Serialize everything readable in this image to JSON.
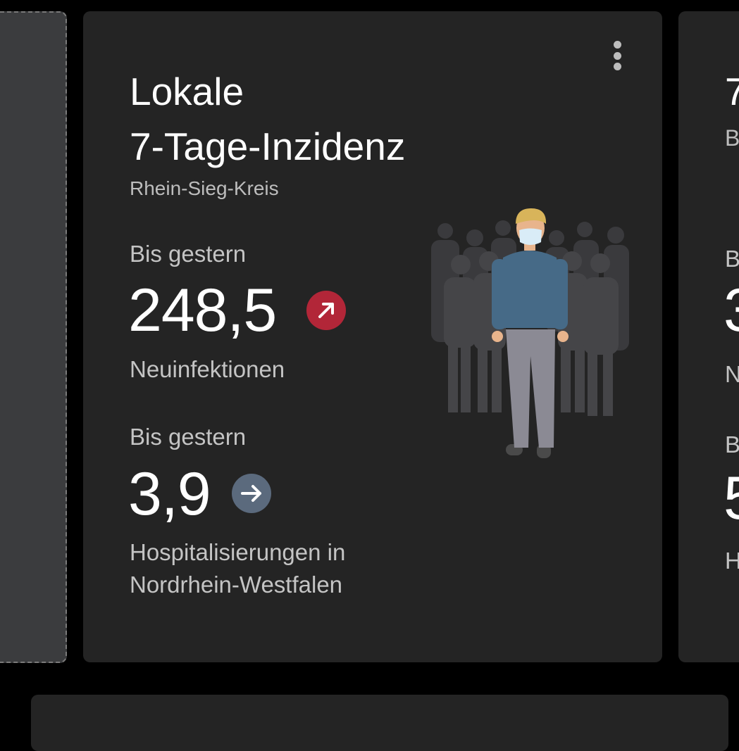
{
  "card": {
    "title_line1": "Lokale",
    "title_line2": "7-Tage-Inzidenz",
    "region": "Rhein-Sieg-Kreis",
    "metric1": {
      "period": "Bis gestern",
      "value": "248,5",
      "label": "Neuinfektionen",
      "trend": "up-right",
      "trend_color": "#b22638"
    },
    "metric2": {
      "period": "Bis gestern",
      "value": "3,9",
      "label_line1": "Hospitalisierungen in",
      "label_line2": "Nordrhein-Westfalen",
      "trend": "right",
      "trend_color": "#5b6a7d"
    },
    "menu_icon": "more-vertical-icon"
  },
  "right_card": {
    "t1": "7",
    "t2": "B",
    "t3": "B",
    "t4": "3",
    "t5": "N",
    "t6": "B",
    "t7": "5",
    "t8": "H"
  }
}
